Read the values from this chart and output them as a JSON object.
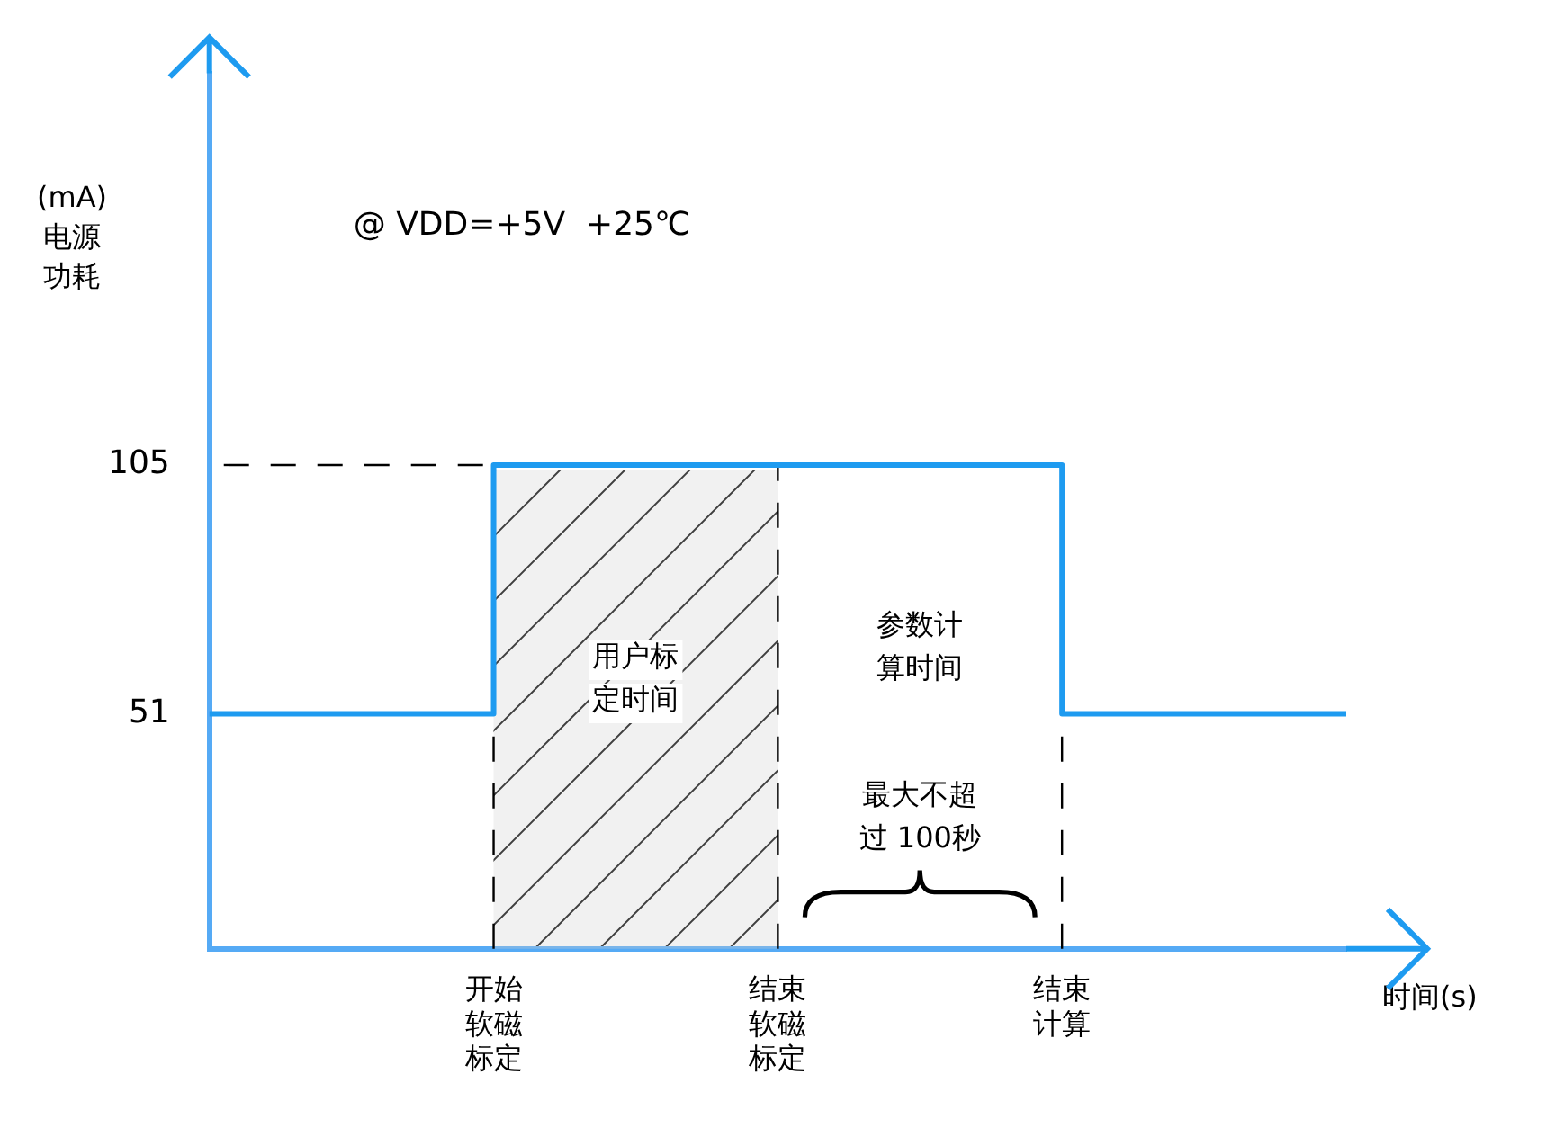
{
  "chart_data": {
    "type": "step",
    "ylabel": "(mA)电源功耗",
    "xlabel": "时间(s)",
    "categories": [
      null,
      "开始软磁标定",
      "结束软磁标定",
      "结束计算",
      null
    ],
    "series": [
      {
        "color": "#1e9bf0",
        "values": [
          51,
          105,
          105,
          51,
          51
        ]
      }
    ],
    "ylim": [
      0,
      190
    ],
    "yticks": [
      51,
      105
    ],
    "grid": false,
    "legend": false,
    "line_style": "solid",
    "marker": "none",
    "bands": [
      {
        "axis": "x",
        "from": "开始软磁标定",
        "to": "结束软磁标定",
        "label": "用户标定时间",
        "color": "#d0d0d0"
      }
    ],
    "ref_lines": [
      {
        "axis": "y",
        "value": 105,
        "line_style": "dashed"
      },
      {
        "axis": "x",
        "value": "开始软磁标定",
        "line_style": "dashed"
      },
      {
        "axis": "x",
        "value": "结束软磁标定",
        "line_style": "dashed"
      },
      {
        "axis": "x",
        "value": "结束计算",
        "line_style": "dashed"
      }
    ],
    "annotations": [
      "@ VDD=+5V  +25℃",
      "参数计算时间",
      "最大不超过 100秒"
    ]
  }
}
